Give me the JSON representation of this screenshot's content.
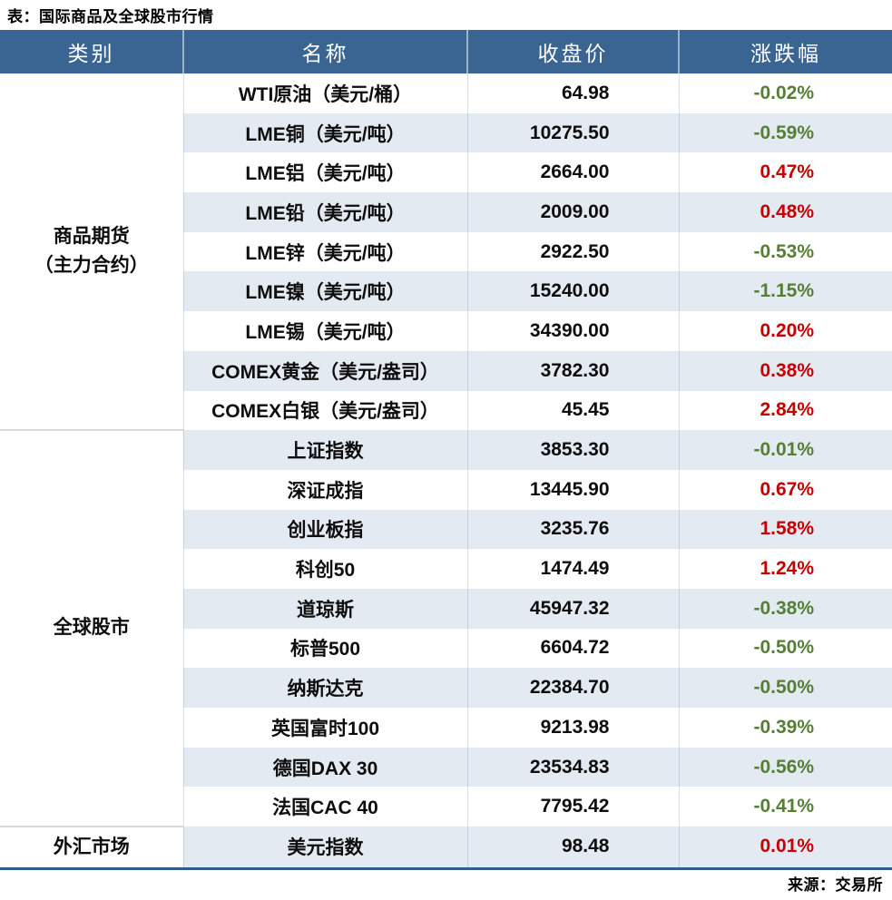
{
  "title": "表：国际商品及全球股市行情",
  "source": "来源：交易所",
  "header": {
    "category": "类别",
    "name": "名称",
    "close": "收盘价",
    "change": "涨跌幅"
  },
  "colors": {
    "header_bg": "#3A6491",
    "header_divider": "#9DB3CC",
    "stripe": "#E4EAF2",
    "up_red": "#C50000",
    "down_green": "#567F35",
    "bottom_border": "#2F5D8C",
    "section_divider": "#D9D9D9"
  },
  "sections": [
    {
      "category_lines": [
        "商品期货",
        "（主力合约）"
      ],
      "rows": [
        {
          "name": "WTI原油（美元/桶）",
          "close": "64.98",
          "change": "-0.02%"
        },
        {
          "name": "LME铜（美元/吨）",
          "close": "10275.50",
          "change": "-0.59%"
        },
        {
          "name": "LME铝（美元/吨）",
          "close": "2664.00",
          "change": "0.47%"
        },
        {
          "name": "LME铅（美元/吨）",
          "close": "2009.00",
          "change": "0.48%"
        },
        {
          "name": "LME锌（美元/吨）",
          "close": "2922.50",
          "change": "-0.53%"
        },
        {
          "name": "LME镍（美元/吨）",
          "close": "15240.00",
          "change": "-1.15%"
        },
        {
          "name": "LME锡（美元/吨）",
          "close": "34390.00",
          "change": "0.20%"
        },
        {
          "name": "COMEX黄金（美元/盎司）",
          "close": "3782.30",
          "change": "0.38%"
        },
        {
          "name": "COMEX白银（美元/盎司）",
          "close": "45.45",
          "change": "2.84%"
        }
      ]
    },
    {
      "category_lines": [
        "全球股市"
      ],
      "rows": [
        {
          "name": "上证指数",
          "close": "3853.30",
          "change": "-0.01%"
        },
        {
          "name": "深证成指",
          "close": "13445.90",
          "change": "0.67%"
        },
        {
          "name": "创业板指",
          "close": "3235.76",
          "change": "1.58%"
        },
        {
          "name": "科创50",
          "close": "1474.49",
          "change": "1.24%"
        },
        {
          "name": "道琼斯",
          "close": "45947.32",
          "change": "-0.38%"
        },
        {
          "name": "标普500",
          "close": "6604.72",
          "change": "-0.50%"
        },
        {
          "name": "纳斯达克",
          "close": "22384.70",
          "change": "-0.50%"
        },
        {
          "name": "英国富时100",
          "close": "9213.98",
          "change": "-0.39%"
        },
        {
          "name": "德国DAX 30",
          "close": "23534.83",
          "change": "-0.56%"
        },
        {
          "name": "法国CAC 40",
          "close": "7795.42",
          "change": "-0.41%"
        }
      ]
    },
    {
      "category_lines": [
        "外汇市场"
      ],
      "rows": [
        {
          "name": "美元指数",
          "close": "98.48",
          "change": "0.01%"
        }
      ]
    }
  ]
}
